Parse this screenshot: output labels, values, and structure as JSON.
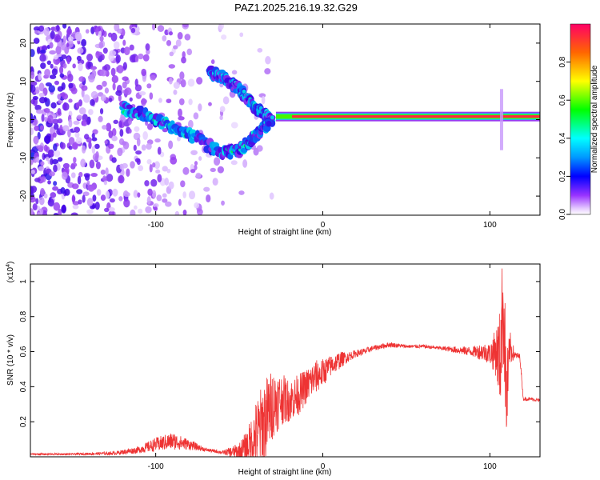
{
  "title": "PAZ1.2025.216.19.32.G29",
  "chart_data": [
    {
      "type": "heatmap",
      "xlabel": "Height of straight line (km)",
      "ylabel": "Frequency (Hz)",
      "xlim": [
        -175,
        130
      ],
      "ylim": [
        -25,
        25
      ],
      "xticks": [
        -100,
        0,
        100
      ],
      "yticks": [
        -20,
        -10,
        0,
        10,
        20
      ],
      "colorbar": {
        "label": "Normalized spectral amplitude",
        "ticks": [
          0.0,
          0.2,
          0.4,
          0.6,
          0.8
        ],
        "range": [
          0,
          1
        ]
      },
      "features": {
        "noise_region_x": [
          -175,
          -30
        ],
        "upper_branch": [
          [
            -68,
            12.5
          ],
          [
            -60,
            11
          ],
          [
            -50,
            8
          ],
          [
            -42,
            4
          ],
          [
            -35,
            1
          ],
          [
            -30,
            0
          ]
        ],
        "lower_branch": [
          [
            -120,
            3
          ],
          [
            -105,
            1
          ],
          [
            -90,
            -2
          ],
          [
            -75,
            -5
          ],
          [
            -60,
            -9
          ],
          [
            -50,
            -8
          ],
          [
            -40,
            -4
          ],
          [
            -32,
            -1
          ]
        ],
        "carrier_band": {
          "x": [
            -28,
            130
          ],
          "freq": 0.8,
          "amplitude": 0.95
        },
        "spike_at_x": 107
      },
      "grid": false
    },
    {
      "type": "line",
      "xlabel": "Height of straight line (km)",
      "ylabel": "SNR (10 * v/v)",
      "yscale_label": "(x10^4)",
      "scale_main": "(x10",
      "scale_exp": "4",
      "scale_close": ")",
      "xlim": [
        -175,
        130
      ],
      "ylim": [
        0,
        1.1
      ],
      "xticks": [
        -100,
        0,
        100
      ],
      "yticks": [
        0.2,
        0.4,
        0.6,
        0.8,
        1
      ],
      "series": [
        {
          "color": "#ee3333",
          "x": [
            -175,
            -150,
            -125,
            -110,
            -100,
            -90,
            -80,
            -70,
            -60,
            -50,
            -45,
            -40,
            -35,
            -30,
            -25,
            -20,
            -15,
            -10,
            -5,
            0,
            5,
            10,
            15,
            20,
            25,
            30,
            40,
            50,
            60,
            70,
            80,
            90,
            95,
            100,
            104,
            106,
            108,
            110,
            112,
            115,
            118,
            120,
            125,
            130
          ],
          "values": [
            0.015,
            0.015,
            0.02,
            0.04,
            0.07,
            0.09,
            0.07,
            0.04,
            0.025,
            0.03,
            0.06,
            0.12,
            0.2,
            0.3,
            0.33,
            0.32,
            0.35,
            0.4,
            0.45,
            0.48,
            0.52,
            0.55,
            0.57,
            0.59,
            0.6,
            0.62,
            0.64,
            0.63,
            0.63,
            0.62,
            0.61,
            0.6,
            0.6,
            0.59,
            0.6,
            0.55,
            0.9,
            0.3,
            0.62,
            0.58,
            0.57,
            0.33,
            0.33,
            0.32
          ],
          "noise_amplitude": [
            0.005,
            0.005,
            0.01,
            0.02,
            0.04,
            0.05,
            0.03,
            0.01,
            0.01,
            0.05,
            0.1,
            0.2,
            0.25,
            0.2,
            0.15,
            0.12,
            0.12,
            0.1,
            0.1,
            0.08,
            0.06,
            0.05,
            0.03,
            0.02,
            0.02,
            0.015,
            0.015,
            0.01,
            0.01,
            0.01,
            0.02,
            0.03,
            0.05,
            0.06,
            0.15,
            0.3,
            0.35,
            0.3,
            0.1,
            0.02,
            0.02,
            0.01,
            0.01,
            0.01
          ]
        }
      ],
      "grid": false
    }
  ]
}
